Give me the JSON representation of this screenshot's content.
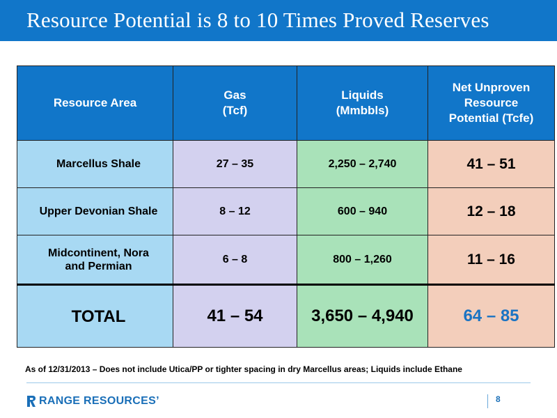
{
  "slide": {
    "title": "Resource Potential is 8 to 10 Times Proved Reserves",
    "footnote": "As of 12/31/2013 – Does not include Utica/PP or tighter spacing in dry Marcellus areas; Liquids include Ethane",
    "page_number": "8"
  },
  "branding": {
    "logo_text": "RANGE RESOURCES’"
  },
  "table": {
    "headers": {
      "area": "Resource Area",
      "gas_line1": "Gas",
      "gas_line2": "(Tcf)",
      "liquids_line1": "Liquids",
      "liquids_line2": "(Mmbbls)",
      "net_line1": "Net Unproven",
      "net_line2": "Resource",
      "net_line3": "Potential (Tcfe)"
    },
    "rows": [
      {
        "area_line1": "Marcellus Shale",
        "area_line2": "",
        "gas": "27 – 35",
        "liquids": "2,250 – 2,740",
        "net": "41 – 51"
      },
      {
        "area_line1": "Upper Devonian Shale",
        "area_line2": "",
        "gas": "8 – 12",
        "liquids": "600 –  940",
        "net": "12 – 18"
      },
      {
        "area_line1": "Midcontinent, Nora",
        "area_line2": "and Permian",
        "gas": "6 – 8",
        "liquids": "800  – 1,260",
        "net": "11 – 16"
      }
    ],
    "total": {
      "label": "TOTAL",
      "gas": "41 – 54",
      "liquids": "3,650 – 4,940",
      "net": "64 – 85"
    }
  },
  "colors": {
    "header_blue": "#1176c9",
    "area_col": "#a8d9f3",
    "gas_col": "#d3d1ef",
    "liquids_col": "#a9e2b9",
    "net_col": "#f3cebb",
    "total_net_text": "#1a73c3"
  }
}
